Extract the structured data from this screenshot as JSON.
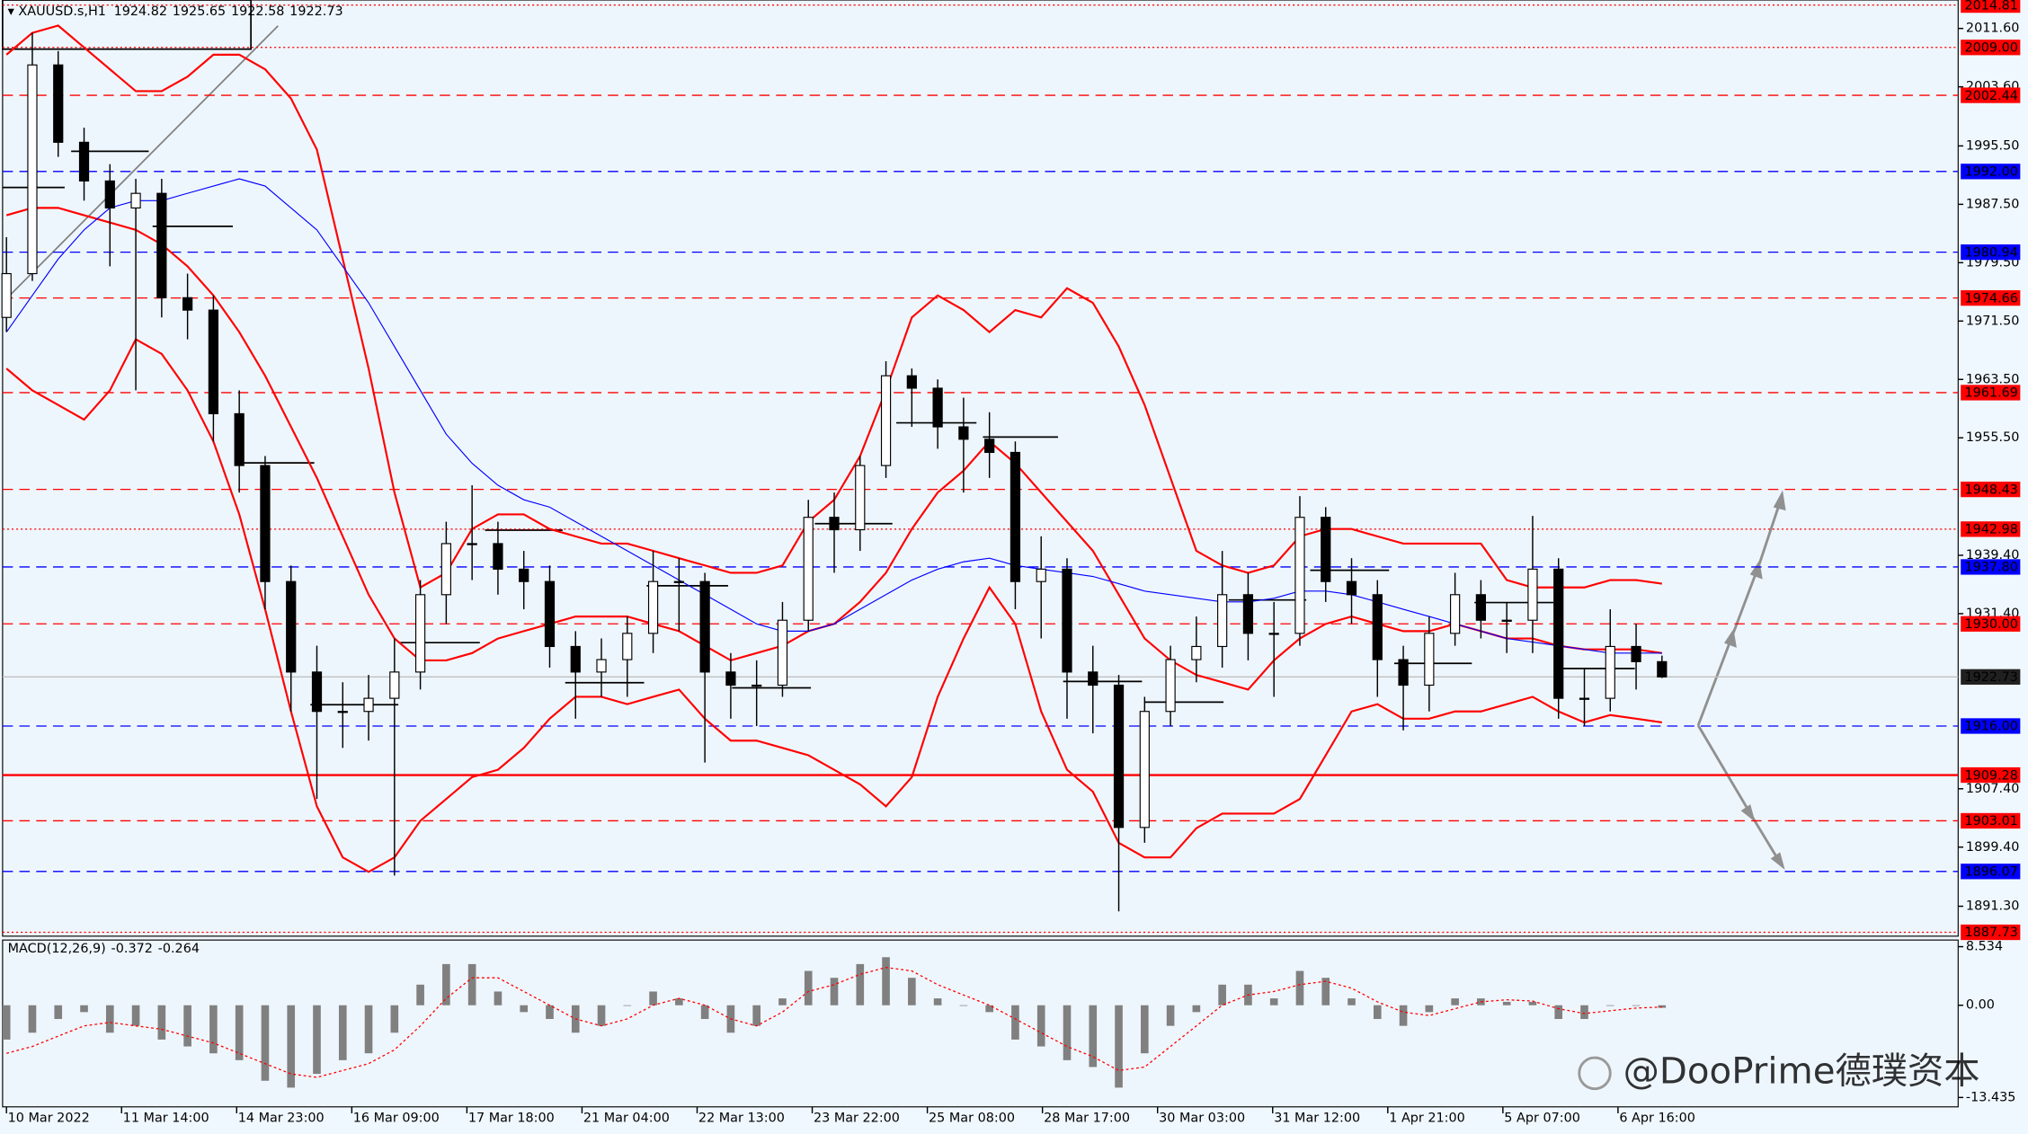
{
  "chart_data": {
    "type": "candlestick",
    "title": "XAUUSD.s,H1",
    "up_color": "#ffffff",
    "down_color": "#000000",
    "wick_color": "#000000",
    "candles": [
      [
        1972,
        1983,
        1970,
        1978
      ],
      [
        1978,
        2011,
        1977,
        2006.6
      ],
      [
        2006.6,
        2008.5,
        1994,
        1996
      ],
      [
        1996,
        1998,
        1988,
        1990.7
      ],
      [
        1990.7,
        1993,
        1979,
        1987
      ],
      [
        1987,
        1991,
        1962,
        1989
      ],
      [
        1989,
        1991,
        1972,
        1974.7
      ],
      [
        1974.7,
        1978,
        1969,
        1973
      ],
      [
        1973,
        1975,
        1955,
        1958.8
      ],
      [
        1958.8,
        1962,
        1948,
        1951.7
      ],
      [
        1951.7,
        1953,
        1932,
        1935.8
      ],
      [
        1935.8,
        1938,
        1918,
        1923.4
      ],
      [
        1923.4,
        1927,
        1906,
        1918
      ],
      [
        1918,
        1922,
        1913,
        1918
      ],
      [
        1918,
        1923,
        1914,
        1919.8
      ],
      [
        1919.8,
        1928,
        1895.5,
        1923.4
      ],
      [
        1923.4,
        1936,
        1921,
        1934
      ],
      [
        1934,
        1944,
        1930,
        1941
      ],
      [
        1941,
        1949,
        1936,
        1941
      ],
      [
        1941,
        1944,
        1934,
        1937.5
      ],
      [
        1937.5,
        1940,
        1932,
        1935.8
      ],
      [
        1935.8,
        1938,
        1924,
        1926.9
      ],
      [
        1926.9,
        1929,
        1917,
        1923.4
      ],
      [
        1923.4,
        1928,
        1920,
        1925.1
      ],
      [
        1925.1,
        1931,
        1920,
        1928.7
      ],
      [
        1928.7,
        1940,
        1926,
        1935.8
      ],
      [
        1935.8,
        1939,
        1929,
        1935.8
      ],
      [
        1935.8,
        1937,
        1911,
        1923.4
      ],
      [
        1923.4,
        1926,
        1917,
        1921.6
      ],
      [
        1921.6,
        1925,
        1916,
        1921.6
      ],
      [
        1921.6,
        1933,
        1920,
        1930.5
      ],
      [
        1930.5,
        1947,
        1929,
        1944.6
      ],
      [
        1944.6,
        1948,
        1937,
        1942.9
      ],
      [
        1942.9,
        1953,
        1940,
        1951.7
      ],
      [
        1951.7,
        1966,
        1950,
        1964
      ],
      [
        1964,
        1965,
        1957,
        1962.3
      ],
      [
        1962.3,
        1963.5,
        1954,
        1957
      ],
      [
        1957,
        1961,
        1948,
        1955.3
      ],
      [
        1955.3,
        1959,
        1950,
        1953.5
      ],
      [
        1953.5,
        1955,
        1932,
        1935.8
      ],
      [
        1935.8,
        1942,
        1928,
        1937.5
      ],
      [
        1937.5,
        1939,
        1917,
        1923.4
      ],
      [
        1923.4,
        1927,
        1915,
        1921.6
      ],
      [
        1921.6,
        1923,
        1890.6,
        1902.1
      ],
      [
        1902.1,
        1920,
        1900,
        1918
      ],
      [
        1918,
        1927,
        1916,
        1925.1
      ],
      [
        1925.1,
        1931,
        1922,
        1926.9
      ],
      [
        1926.9,
        1940,
        1924,
        1934
      ],
      [
        1934,
        1937,
        1925,
        1928.7
      ],
      [
        1928.7,
        1933,
        1920,
        1928.7
      ],
      [
        1928.7,
        1947.5,
        1927,
        1944.6
      ],
      [
        1944.6,
        1946,
        1933,
        1935.8
      ],
      [
        1935.8,
        1939,
        1930,
        1934
      ],
      [
        1934,
        1936,
        1920,
        1925.1
      ],
      [
        1925.1,
        1927,
        1915.4,
        1921.6
      ],
      [
        1921.6,
        1931,
        1918,
        1928.7
      ],
      [
        1928.7,
        1937,
        1927,
        1934
      ],
      [
        1934,
        1936,
        1928,
        1930.5
      ],
      [
        1930.5,
        1933,
        1926,
        1930.5
      ],
      [
        1930.5,
        1944.8,
        1926,
        1937.5
      ],
      [
        1937.5,
        1939,
        1917,
        1919.8
      ],
      [
        1919.8,
        1924,
        1916,
        1919.8
      ],
      [
        1919.8,
        1932,
        1918,
        1926.9
      ],
      [
        1926.9,
        1930,
        1921,
        1924.82
      ],
      [
        1924.82,
        1925.65,
        1922.58,
        1922.73
      ]
    ],
    "overlays": [
      {
        "color": "#ff0000",
        "width": 1.5,
        "values": [
          2008,
          2011,
          2012,
          2009,
          2006,
          2003,
          2003,
          2005,
          2008,
          2008,
          2006,
          2002,
          1995,
          1980,
          1965,
          1948,
          1935,
          1937,
          1943,
          1945,
          1945,
          1943,
          1942,
          1941,
          1941,
          1940,
          1939,
          1938,
          1937,
          1937,
          1938,
          1944,
          1947,
          1953,
          1962,
          1972,
          1975,
          1973,
          1970,
          1973,
          1972,
          1976,
          1974,
          1968,
          1960,
          1950,
          1940,
          1938,
          1937,
          1938,
          1942,
          1943,
          1943,
          1942,
          1941,
          1941,
          1941,
          1941,
          1936,
          1935,
          1935,
          1935,
          1936,
          1936,
          1935.5
        ]
      },
      {
        "color": "#ff0000",
        "width": 1.5,
        "values": [
          1986,
          1987,
          1987,
          1986,
          1985,
          1984,
          1982,
          1979,
          1975,
          1970,
          1964,
          1957,
          1950,
          1942,
          1934,
          1928,
          1925,
          1925,
          1926,
          1928,
          1929,
          1930,
          1931,
          1931,
          1931,
          1930,
          1929,
          1927,
          1925,
          1926,
          1927,
          1929,
          1930,
          1933,
          1937,
          1943,
          1948,
          1951,
          1955,
          1952,
          1948,
          1944,
          1940,
          1934,
          1928,
          1925,
          1923,
          1922,
          1921,
          1925,
          1928,
          1930,
          1931,
          1930,
          1929,
          1929,
          1930,
          1929,
          1928,
          1928,
          1927,
          1926.5,
          1926.5,
          1926.5,
          1926
        ]
      },
      {
        "color": "#ff0000",
        "width": 1.5,
        "values": [
          1965,
          1962,
          1960,
          1958,
          1962,
          1969,
          1967,
          1962,
          1955,
          1945,
          1932,
          1918,
          1905,
          1898,
          1896,
          1898,
          1903,
          1906,
          1909,
          1910,
          1913,
          1917,
          1920,
          1920,
          1919,
          1920,
          1921,
          1917,
          1914,
          1914,
          1913,
          1912,
          1910,
          1908,
          1905,
          1909,
          1920,
          1928,
          1935,
          1930,
          1918,
          1910,
          1907,
          1900,
          1898,
          1898,
          1902,
          1904,
          1904,
          1904,
          1906,
          1912,
          1918,
          1919,
          1917,
          1917,
          1918,
          1918,
          1919,
          1920,
          1918,
          1916.5,
          1917.5,
          1917,
          1916.5
        ]
      },
      {
        "color": "#0000ff",
        "width": 0.8,
        "values": [
          1970,
          1975,
          1980,
          1984,
          1987,
          1988,
          1988,
          1989,
          1990,
          1991,
          1990,
          1987,
          1984,
          1979,
          1974,
          1968,
          1962,
          1956,
          1952,
          1949,
          1947,
          1946,
          1944,
          1942,
          1940,
          1938,
          1936,
          1934,
          1932,
          1930,
          1929,
          1929,
          1930,
          1932,
          1934,
          1936,
          1937.5,
          1938.5,
          1939,
          1938,
          1937.5,
          1937,
          1936.5,
          1935.5,
          1934.5,
          1934,
          1933.5,
          1933,
          1933,
          1933.5,
          1934.5,
          1934.5,
          1934,
          1933,
          1932,
          1931,
          1930,
          1929,
          1928,
          1927.5,
          1927,
          1926.5,
          1926,
          1926,
          1926
        ]
      }
    ],
    "levels": [
      {
        "value": 2014.81,
        "label": "2014.81",
        "color": "#ff0000",
        "box": "#ff0000",
        "style": "dotted"
      },
      {
        "value": 2009,
        "label": "2009.00",
        "color": "#ff0000",
        "box": "#ff0000",
        "style": "dotted"
      },
      {
        "value": 2002.44,
        "label": "2002.44",
        "color": "#ff0000",
        "box": "#ff0000",
        "style": "dashed"
      },
      {
        "value": 1992,
        "label": "1992.00",
        "color": "#0000ff",
        "box": "#0000ff",
        "style": "dashed"
      },
      {
        "value": 1980.94,
        "label": "1980.94",
        "color": "#0000ff",
        "box": "#0000ff",
        "style": "dashed"
      },
      {
        "value": 1974.66,
        "label": "1974.66",
        "color": "#ff0000",
        "box": "#ff0000",
        "style": "dashed"
      },
      {
        "value": 1961.69,
        "label": "1961.69",
        "color": "#ff0000",
        "box": "#ff0000",
        "style": "dashed"
      },
      {
        "value": 1948.43,
        "label": "1948.43",
        "color": "#ff0000",
        "box": "#ff0000",
        "style": "dashed"
      },
      {
        "value": 1942.98,
        "label": "1942.98",
        "color": "#ff0000",
        "box": "#ff0000",
        "style": "dotted"
      },
      {
        "value": 1937.8,
        "label": "1937.80",
        "color": "#0000ff",
        "box": "#0000ff",
        "style": "dashed"
      },
      {
        "value": 1930,
        "label": "1930.00",
        "color": "#ff0000",
        "box": "#ff0000",
        "style": "dashed"
      },
      {
        "value": 1922.73,
        "label": "1922.73",
        "color": "#c0c0c0",
        "box": "#202020",
        "style": "solid"
      },
      {
        "value": 1916,
        "label": "1916.00",
        "color": "#0000ff",
        "box": "#0000ff",
        "style": "dashed"
      },
      {
        "value": 1909.28,
        "label": "1909.28",
        "color": "#ff0000",
        "box": "#ff0000",
        "style": "thick"
      },
      {
        "value": 1903.01,
        "label": "1903.01",
        "color": "#ff0000",
        "box": "#ff0000",
        "style": "dashed"
      },
      {
        "value": 1896.07,
        "label": "1896.07",
        "color": "#0000ff",
        "box": "#0000ff",
        "style": "dashed"
      },
      {
        "value": 1887.73,
        "label": "1887.73",
        "color": "#ff0000",
        "box": "#ff0000",
        "style": "dotted"
      }
    ],
    "ylim": [
      1887.2,
      2015.5
    ],
    "yticks": [
      {
        "value": 2011.6,
        "label": "2011.60"
      },
      {
        "value": 2003.6,
        "label": "2003.60"
      },
      {
        "value": 1995.5,
        "label": "1995.50"
      },
      {
        "value": 1987.5,
        "label": "1987.50"
      },
      {
        "value": 1979.5,
        "label": "1979.50"
      },
      {
        "value": 1971.5,
        "label": "1971.50"
      },
      {
        "value": 1963.5,
        "label": "1963.50"
      },
      {
        "value": 1955.5,
        "label": "1955.50"
      },
      {
        "value": 1939.4,
        "label": "1939.40"
      },
      {
        "value": 1931.4,
        "label": "1931.40"
      },
      {
        "value": 1907.4,
        "label": "1907.40"
      },
      {
        "value": 1899.4,
        "label": "1899.40"
      },
      {
        "value": 1891.3,
        "label": "1891.30"
      }
    ],
    "xlim": [
      -0.15,
      75.45
    ],
    "xticks": [
      {
        "value": 0,
        "label": "10 Mar 2022"
      },
      {
        "value": 4.45,
        "label": "11 Mar 14:00"
      },
      {
        "value": 8.9,
        "label": "14 Mar 23:00"
      },
      {
        "value": 13.35,
        "label": "16 Mar 09:00"
      },
      {
        "value": 17.8,
        "label": "17 Mar 18:00"
      },
      {
        "value": 22.25,
        "label": "21 Mar 04:00"
      },
      {
        "value": 26.7,
        "label": "22 Mar 13:00"
      },
      {
        "value": 31.15,
        "label": "23 Mar 22:00"
      },
      {
        "value": 35.6,
        "label": "25 Mar 08:00"
      },
      {
        "value": 40.05,
        "label": "28 Mar 17:00"
      },
      {
        "value": 44.5,
        "label": "30 Mar 03:00"
      },
      {
        "value": 48.95,
        "label": "31 Mar 12:00"
      },
      {
        "value": 53.4,
        "label": "1 Apr 21:00"
      },
      {
        "value": 57.85,
        "label": "5 Apr 07:00"
      },
      {
        "value": 62.3,
        "label": "6 Apr 16:00"
      }
    ],
    "macd": {
      "name": "MACD(12,26,9)",
      "hist_color": "#808080",
      "signal_color": "#ff0000",
      "histogram": [
        -5,
        -4,
        -2,
        -1,
        -4,
        -3,
        -5,
        -6,
        -7,
        -8,
        -11,
        -12,
        -10,
        -8,
        -7,
        -4,
        3,
        6,
        6,
        2,
        -1,
        -2,
        -4,
        -3,
        0,
        2,
        1,
        -2,
        -4,
        -3,
        1,
        5,
        4,
        6,
        7,
        4,
        1,
        0,
        -1,
        -5,
        -6,
        -8,
        -9,
        -12,
        -7,
        -3,
        -1,
        3,
        3,
        1,
        5,
        4,
        1,
        -2,
        -3,
        -1,
        1,
        1,
        0.5,
        0.5,
        -2,
        -2,
        0,
        0,
        -0.372
      ],
      "signal": [
        -7,
        -6,
        -4.5,
        -3,
        -2.5,
        -3,
        -3.5,
        -4.5,
        -5.5,
        -7,
        -8.5,
        -10,
        -10.5,
        -9.5,
        -8.5,
        -6.5,
        -3,
        1,
        4,
        4,
        2,
        0,
        -2,
        -3,
        -2,
        0,
        1,
        0,
        -2,
        -3,
        -1,
        2,
        3,
        4.5,
        5.5,
        5,
        3,
        1.5,
        0,
        -2,
        -4,
        -6,
        -7.5,
        -9.5,
        -9,
        -6,
        -3,
        0,
        1.5,
        2,
        3,
        3.5,
        2.5,
        0.5,
        -1,
        -1.5,
        -0.5,
        0.5,
        0.8,
        0.6,
        -0.5,
        -1.2,
        -0.8,
        -0.4,
        -0.264
      ],
      "ylim": [
        -14.8,
        9.5
      ],
      "yticks": [
        8.534,
        {
          "value": 0,
          "label": "0.00"
        },
        -13.435
      ]
    },
    "watermark": "@DooPrime德璞资本"
  }
}
